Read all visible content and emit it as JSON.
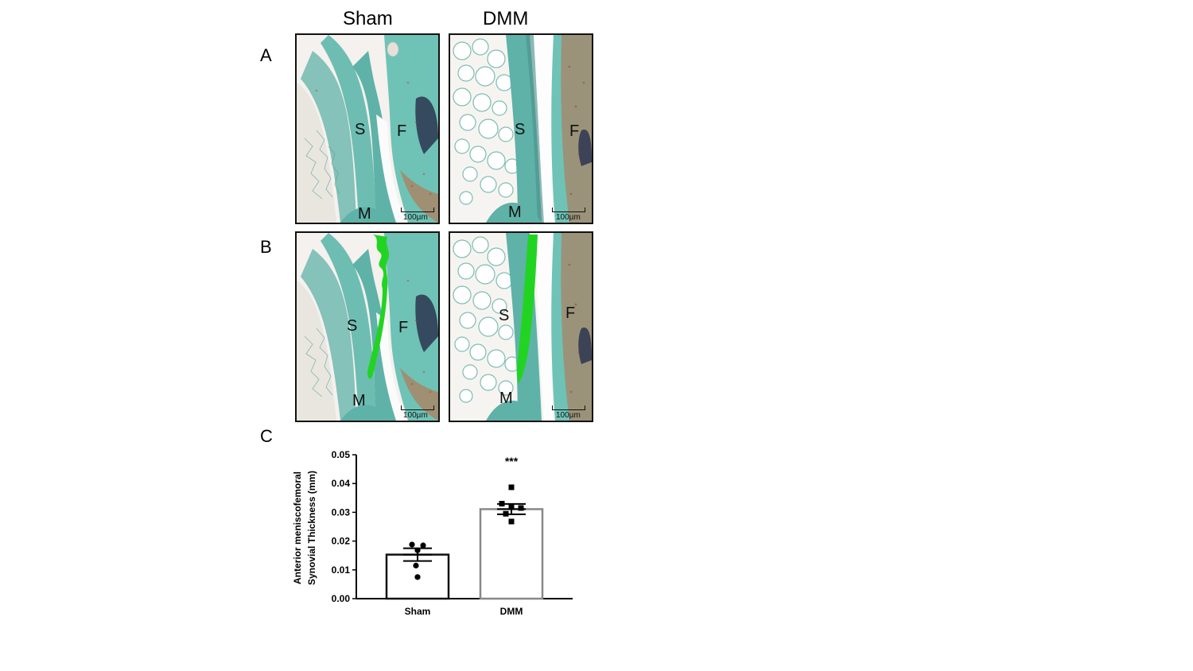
{
  "columns": {
    "left": "Sham",
    "right": "DMM"
  },
  "panels": {
    "a_letter": "A",
    "b_letter": "B",
    "c_letter": "C"
  },
  "labels": {
    "synovium": "S",
    "femur": "F",
    "meniscus": "M"
  },
  "scale_bar_text": "100µm",
  "colors": {
    "stain_teal": "#5fb2a8",
    "highlight_green": "#22d422",
    "stain_red": "#c8643c"
  },
  "chart_data": {
    "type": "bar",
    "categories": [
      "Sham",
      "DMM"
    ],
    "values": [
      0.0153,
      0.0311
    ],
    "errors": [
      0.0022,
      0.0018
    ],
    "points": [
      [
        0.0188,
        0.0185,
        0.0168,
        0.0115,
        0.0075
      ],
      [
        0.0387,
        0.033,
        0.0318,
        0.0315,
        0.0295,
        0.0268
      ]
    ],
    "ylabel": "Anterior meniscofemoral Synovial Thickness (mm)",
    "ylabel_lines": [
      "Anterior meniscofemoral",
      "Synovial Thickness (mm)"
    ],
    "yticks": [
      "0.00",
      "0.01",
      "0.02",
      "0.03",
      "0.04",
      "0.05"
    ],
    "ylim": [
      0,
      0.05
    ],
    "annotation": "***",
    "bar_colors": [
      "#111111",
      "#888888"
    ]
  }
}
